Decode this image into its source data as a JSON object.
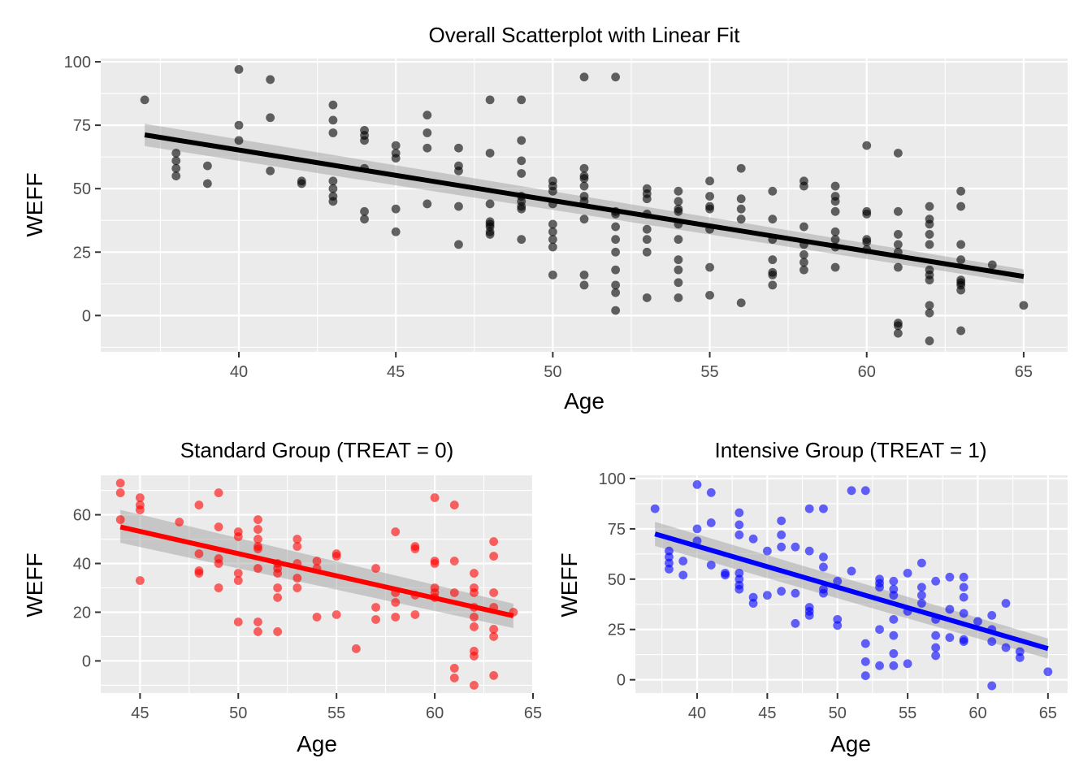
{
  "colors": {
    "panel_bg": "#ebebeb",
    "grid": "#ffffff",
    "ci_band": "#999999",
    "tick": "#333333",
    "tick_label": "#4d4d4d"
  },
  "chart_data": [
    {
      "type": "scatter",
      "title": "Overall Scatterplot with Linear Fit",
      "xlabel": "Age",
      "ylabel": "WEFF",
      "xlim": [
        35.6,
        66.4
      ],
      "ylim": [
        -14.3,
        101.3
      ],
      "xticks": [
        40,
        45,
        50,
        55,
        60,
        65
      ],
      "yticks": [
        0,
        25,
        50,
        75,
        100
      ],
      "point_color": "#000000",
      "line_color": "#000000",
      "grid": true,
      "fit": {
        "x": [
          37,
          65
        ],
        "y": [
          71.2,
          15.4
        ],
        "ci_lo": [
          66.8,
          12.6
        ],
        "ci_hi": [
          75.6,
          18.2
        ]
      },
      "points": [
        [
          37,
          85
        ],
        [
          38,
          64
        ],
        [
          38,
          61
        ],
        [
          38,
          58
        ],
        [
          38,
          55
        ],
        [
          39,
          59
        ],
        [
          39,
          52
        ],
        [
          40,
          97
        ],
        [
          40,
          75
        ],
        [
          40,
          69
        ],
        [
          41,
          93
        ],
        [
          41,
          78
        ],
        [
          41,
          57
        ],
        [
          42,
          53
        ],
        [
          42,
          52
        ],
        [
          43,
          83
        ],
        [
          43,
          77
        ],
        [
          43,
          72
        ],
        [
          43,
          53
        ],
        [
          43,
          50
        ],
        [
          43,
          47
        ],
        [
          43,
          45
        ],
        [
          44,
          73
        ],
        [
          44,
          71
        ],
        [
          44,
          69
        ],
        [
          44,
          58
        ],
        [
          44,
          41
        ],
        [
          44,
          38
        ],
        [
          45,
          67
        ],
        [
          45,
          64
        ],
        [
          45,
          62
        ],
        [
          45,
          42
        ],
        [
          45,
          33
        ],
        [
          46,
          79
        ],
        [
          46,
          72
        ],
        [
          46,
          66
        ],
        [
          46,
          44
        ],
        [
          47,
          66
        ],
        [
          47,
          59
        ],
        [
          47,
          57
        ],
        [
          47,
          43
        ],
        [
          47,
          28
        ],
        [
          48,
          85
        ],
        [
          48,
          64
        ],
        [
          48,
          44
        ],
        [
          48,
          37
        ],
        [
          48,
          36
        ],
        [
          48,
          35
        ],
        [
          48,
          33
        ],
        [
          48,
          32
        ],
        [
          49,
          85
        ],
        [
          49,
          69
        ],
        [
          49,
          61
        ],
        [
          49,
          56
        ],
        [
          49,
          47
        ],
        [
          49,
          45
        ],
        [
          49,
          43
        ],
        [
          49,
          42
        ],
        [
          49,
          30
        ],
        [
          50,
          53
        ],
        [
          50,
          51
        ],
        [
          50,
          49
        ],
        [
          50,
          44
        ],
        [
          50,
          36
        ],
        [
          50,
          33
        ],
        [
          50,
          30
        ],
        [
          50,
          27
        ],
        [
          50,
          16
        ],
        [
          51,
          94
        ],
        [
          51,
          58
        ],
        [
          51,
          55
        ],
        [
          51,
          54
        ],
        [
          51,
          51
        ],
        [
          51,
          47
        ],
        [
          51,
          45
        ],
        [
          51,
          38
        ],
        [
          51,
          16
        ],
        [
          51,
          12
        ],
        [
          52,
          94
        ],
        [
          52,
          41
        ],
        [
          52,
          40
        ],
        [
          52,
          35
        ],
        [
          52,
          30
        ],
        [
          52,
          25
        ],
        [
          52,
          18
        ],
        [
          52,
          12
        ],
        [
          52,
          9
        ],
        [
          52,
          2
        ],
        [
          53,
          50
        ],
        [
          53,
          48
        ],
        [
          53,
          46
        ],
        [
          53,
          40
        ],
        [
          53,
          34
        ],
        [
          53,
          30
        ],
        [
          53,
          25
        ],
        [
          53,
          7
        ],
        [
          54,
          49
        ],
        [
          54,
          45
        ],
        [
          54,
          42
        ],
        [
          54,
          41
        ],
        [
          54,
          36
        ],
        [
          54,
          30
        ],
        [
          54,
          22
        ],
        [
          54,
          18
        ],
        [
          54,
          13
        ],
        [
          54,
          7
        ],
        [
          55,
          53
        ],
        [
          55,
          47
        ],
        [
          55,
          43
        ],
        [
          55,
          42
        ],
        [
          55,
          34
        ],
        [
          55,
          19
        ],
        [
          55,
          8
        ],
        [
          56,
          58
        ],
        [
          56,
          46
        ],
        [
          56,
          42
        ],
        [
          56,
          38
        ],
        [
          56,
          5
        ],
        [
          57,
          49
        ],
        [
          57,
          38
        ],
        [
          57,
          30
        ],
        [
          57,
          22
        ],
        [
          57,
          17
        ],
        [
          57,
          16
        ],
        [
          57,
          12
        ],
        [
          58,
          53
        ],
        [
          58,
          51
        ],
        [
          58,
          35
        ],
        [
          58,
          28
        ],
        [
          58,
          24
        ],
        [
          58,
          21
        ],
        [
          58,
          18
        ],
        [
          59,
          51
        ],
        [
          59,
          47
        ],
        [
          59,
          45
        ],
        [
          59,
          41
        ],
        [
          59,
          33
        ],
        [
          59,
          30
        ],
        [
          59,
          27
        ],
        [
          59,
          19
        ],
        [
          60,
          67
        ],
        [
          60,
          41
        ],
        [
          60,
          40
        ],
        [
          60,
          30
        ],
        [
          60,
          29
        ],
        [
          60,
          26
        ],
        [
          61,
          64
        ],
        [
          61,
          41
        ],
        [
          61,
          32
        ],
        [
          61,
          28
        ],
        [
          61,
          25
        ],
        [
          61,
          19
        ],
        [
          61,
          -3
        ],
        [
          61,
          -4
        ],
        [
          61,
          -7
        ],
        [
          62,
          43
        ],
        [
          62,
          38
        ],
        [
          62,
          36
        ],
        [
          62,
          32
        ],
        [
          62,
          28
        ],
        [
          62,
          18
        ],
        [
          62,
          16
        ],
        [
          62,
          14
        ],
        [
          62,
          4
        ],
        [
          62,
          1
        ],
        [
          62,
          -10
        ],
        [
          63,
          49
        ],
        [
          63,
          43
        ],
        [
          63,
          28
        ],
        [
          63,
          22
        ],
        [
          63,
          14
        ],
        [
          63,
          13
        ],
        [
          63,
          12
        ],
        [
          63,
          10
        ],
        [
          63,
          -6
        ],
        [
          64,
          20
        ],
        [
          65,
          4
        ]
      ]
    },
    {
      "type": "scatter",
      "title": "Standard Group (TREAT = 0)",
      "xlabel": "Age",
      "ylabel": "WEFF",
      "xlim": [
        43.0,
        65.0
      ],
      "ylim": [
        -13.2,
        76.2
      ],
      "xticks": [
        45,
        50,
        55,
        60,
        65
      ],
      "yticks": [
        0,
        20,
        40,
        60
      ],
      "point_color": "#ff0000",
      "line_color": "#ff0000",
      "grid": true,
      "fit": {
        "x": [
          44,
          64
        ],
        "y": [
          55,
          18.5
        ],
        "ci_lo": [
          48.5,
          13.5
        ],
        "ci_hi": [
          62,
          23.5
        ]
      },
      "points": [
        [
          44,
          73
        ],
        [
          44,
          69
        ],
        [
          44,
          58
        ],
        [
          45,
          67
        ],
        [
          45,
          64
        ],
        [
          45,
          62
        ],
        [
          45,
          33
        ],
        [
          47,
          57
        ],
        [
          48,
          64
        ],
        [
          48,
          44
        ],
        [
          48,
          37
        ],
        [
          48,
          36
        ],
        [
          49,
          69
        ],
        [
          49,
          55
        ],
        [
          49,
          42
        ],
        [
          49,
          40
        ],
        [
          49,
          30
        ],
        [
          50,
          53
        ],
        [
          50,
          51
        ],
        [
          50,
          36
        ],
        [
          50,
          33
        ],
        [
          50,
          16
        ],
        [
          51,
          58
        ],
        [
          51,
          54
        ],
        [
          51,
          50
        ],
        [
          51,
          47
        ],
        [
          51,
          46
        ],
        [
          51,
          38
        ],
        [
          51,
          16
        ],
        [
          51,
          12
        ],
        [
          52,
          40
        ],
        [
          52,
          38
        ],
        [
          52,
          36
        ],
        [
          52,
          30
        ],
        [
          52,
          26
        ],
        [
          52,
          12
        ],
        [
          53,
          50
        ],
        [
          53,
          47
        ],
        [
          53,
          40
        ],
        [
          53,
          34
        ],
        [
          53,
          30
        ],
        [
          54,
          41
        ],
        [
          54,
          38
        ],
        [
          54,
          18
        ],
        [
          55,
          44
        ],
        [
          55,
          43
        ],
        [
          55,
          19
        ],
        [
          56,
          5
        ],
        [
          57,
          38
        ],
        [
          57,
          22
        ],
        [
          57,
          17
        ],
        [
          58,
          53
        ],
        [
          58,
          28
        ],
        [
          58,
          24
        ],
        [
          58,
          18
        ],
        [
          59,
          47
        ],
        [
          59,
          46
        ],
        [
          59,
          27
        ],
        [
          59,
          19
        ],
        [
          60,
          67
        ],
        [
          60,
          41
        ],
        [
          60,
          40
        ],
        [
          60,
          30
        ],
        [
          60,
          28
        ],
        [
          60,
          26
        ],
        [
          61,
          64
        ],
        [
          61,
          41
        ],
        [
          61,
          28
        ],
        [
          61,
          -3
        ],
        [
          61,
          -7
        ],
        [
          62,
          36
        ],
        [
          62,
          30
        ],
        [
          62,
          28
        ],
        [
          62,
          22
        ],
        [
          62,
          18
        ],
        [
          62,
          14
        ],
        [
          62,
          4
        ],
        [
          62,
          2
        ],
        [
          62,
          -10
        ],
        [
          63,
          49
        ],
        [
          63,
          43
        ],
        [
          63,
          28
        ],
        [
          63,
          22
        ],
        [
          63,
          13
        ],
        [
          63,
          10
        ],
        [
          63,
          -6
        ],
        [
          64,
          20
        ]
      ]
    },
    {
      "type": "scatter",
      "title": "Intensive Group (TREAT = 1)",
      "xlabel": "Age",
      "ylabel": "WEFF",
      "xlim": [
        35.6,
        66.4
      ],
      "ylim": [
        -6.6,
        101.6
      ],
      "xticks": [
        40,
        45,
        50,
        55,
        60,
        65
      ],
      "yticks": [
        0,
        25,
        50,
        75,
        100
      ],
      "point_color": "#0000ff",
      "line_color": "#0000ff",
      "grid": true,
      "fit": {
        "x": [
          37,
          65
        ],
        "y": [
          72.5,
          15.5
        ],
        "ci_lo": [
          66.5,
          10.5
        ],
        "ci_hi": [
          78.5,
          20.5
        ]
      },
      "points": [
        [
          37,
          85
        ],
        [
          38,
          64
        ],
        [
          38,
          61
        ],
        [
          38,
          58
        ],
        [
          38,
          55
        ],
        [
          39,
          59
        ],
        [
          39,
          52
        ],
        [
          40,
          97
        ],
        [
          40,
          75
        ],
        [
          40,
          69
        ],
        [
          41,
          93
        ],
        [
          41,
          78
        ],
        [
          41,
          57
        ],
        [
          42,
          53
        ],
        [
          42,
          52
        ],
        [
          43,
          83
        ],
        [
          43,
          77
        ],
        [
          43,
          72
        ],
        [
          43,
          53
        ],
        [
          43,
          50
        ],
        [
          43,
          47
        ],
        [
          43,
          45
        ],
        [
          44,
          41
        ],
        [
          44,
          38
        ],
        [
          44,
          70
        ],
        [
          45,
          64
        ],
        [
          45,
          42
        ],
        [
          46,
          79
        ],
        [
          46,
          72
        ],
        [
          46,
          66
        ],
        [
          46,
          44
        ],
        [
          47,
          66
        ],
        [
          47,
          43
        ],
        [
          47,
          28
        ],
        [
          48,
          85
        ],
        [
          48,
          36
        ],
        [
          48,
          34
        ],
        [
          48,
          32
        ],
        [
          48,
          64
        ],
        [
          49,
          85
        ],
        [
          49,
          61
        ],
        [
          49,
          56
        ],
        [
          49,
          45
        ],
        [
          49,
          43
        ],
        [
          50,
          49
        ],
        [
          50,
          30
        ],
        [
          50,
          27
        ],
        [
          51,
          94
        ],
        [
          51,
          54
        ],
        [
          52,
          94
        ],
        [
          52,
          18
        ],
        [
          52,
          9
        ],
        [
          52,
          2
        ],
        [
          53,
          50
        ],
        [
          53,
          48
        ],
        [
          53,
          46
        ],
        [
          53,
          25
        ],
        [
          53,
          7
        ],
        [
          54,
          49
        ],
        [
          54,
          45
        ],
        [
          54,
          42
        ],
        [
          54,
          30
        ],
        [
          54,
          22
        ],
        [
          54,
          13
        ],
        [
          54,
          7
        ],
        [
          55,
          53
        ],
        [
          55,
          34
        ],
        [
          55,
          8
        ],
        [
          56,
          58
        ],
        [
          56,
          46
        ],
        [
          56,
          42
        ],
        [
          56,
          38
        ],
        [
          57,
          49
        ],
        [
          57,
          30
        ],
        [
          57,
          22
        ],
        [
          57,
          16
        ],
        [
          57,
          12
        ],
        [
          58,
          51
        ],
        [
          58,
          35
        ],
        [
          58,
          21
        ],
        [
          59,
          51
        ],
        [
          59,
          46
        ],
        [
          59,
          41
        ],
        [
          59,
          33
        ],
        [
          59,
          20
        ],
        [
          59,
          19
        ],
        [
          60,
          29
        ],
        [
          61,
          32
        ],
        [
          61,
          25
        ],
        [
          61,
          19
        ],
        [
          61,
          -3
        ],
        [
          62,
          38
        ],
        [
          62,
          16
        ],
        [
          63,
          14
        ],
        [
          63,
          11
        ],
        [
          65,
          4
        ]
      ]
    }
  ]
}
